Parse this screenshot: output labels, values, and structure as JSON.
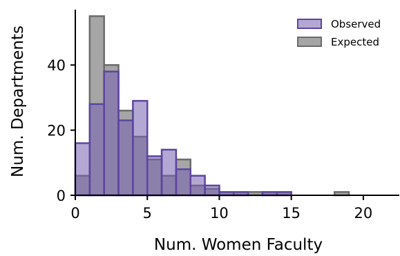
{
  "chart_data": {
    "type": "bar",
    "xlabel": "Num. Women Faculty",
    "ylabel": "Num. Departments",
    "xlim": [
      0,
      22.5
    ],
    "ylim": [
      0,
      57
    ],
    "xticks": [
      0,
      5,
      10,
      15,
      20
    ],
    "yticks": [
      0,
      20,
      40
    ],
    "bin_width": 1,
    "legend_position": "top-right",
    "grid": false,
    "series": [
      {
        "name": "Expected",
        "fill": "#a6a6a6",
        "stroke": "#6b6b6b",
        "bins": [
          {
            "x0": 0,
            "value": 6
          },
          {
            "x0": 1,
            "value": 55
          },
          {
            "x0": 2,
            "value": 40
          },
          {
            "x0": 3,
            "value": 26
          },
          {
            "x0": 4,
            "value": 18
          },
          {
            "x0": 5,
            "value": 11
          },
          {
            "x0": 6,
            "value": 6
          },
          {
            "x0": 7,
            "value": 11
          },
          {
            "x0": 8,
            "value": 3
          },
          {
            "x0": 9,
            "value": 2
          },
          {
            "x0": 10,
            "value": 1
          },
          {
            "x0": 11,
            "value": 1
          },
          {
            "x0": 12,
            "value": 1
          },
          {
            "x0": 13,
            "value": 1
          },
          {
            "x0": 14,
            "value": 1
          },
          {
            "x0": 18,
            "value": 1
          }
        ]
      },
      {
        "name": "Observed",
        "fill": "rgba(117,96,176,0.55)",
        "stroke": "#5e44a0",
        "bins": [
          {
            "x0": 0,
            "value": 16
          },
          {
            "x0": 1,
            "value": 28
          },
          {
            "x0": 2,
            "value": 38
          },
          {
            "x0": 3,
            "value": 23
          },
          {
            "x0": 4,
            "value": 29
          },
          {
            "x0": 5,
            "value": 12
          },
          {
            "x0": 6,
            "value": 14
          },
          {
            "x0": 7,
            "value": 8
          },
          {
            "x0": 8,
            "value": 6
          },
          {
            "x0": 9,
            "value": 3
          },
          {
            "x0": 10,
            "value": 1
          },
          {
            "x0": 11,
            "value": 1
          },
          {
            "x0": 13,
            "value": 1
          },
          {
            "x0": 14,
            "value": 1
          }
        ]
      }
    ],
    "legend": [
      {
        "name": "Observed",
        "fill": "#b3a8d3",
        "stroke": "#5e44a0"
      },
      {
        "name": "Expected",
        "fill": "#a6a6a6",
        "stroke": "#6b6b6b"
      }
    ]
  }
}
